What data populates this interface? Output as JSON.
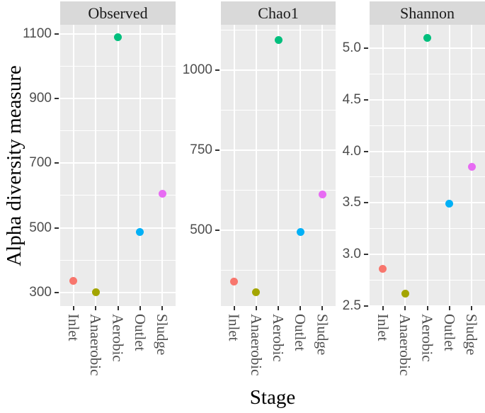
{
  "figure": {
    "y_axis_title": "Alpha diversity measure",
    "x_axis_title": "Stage"
  },
  "chart_data": {
    "type": "scatter",
    "subtype": "faceted-dotplot",
    "title": "",
    "xlabel": "Stage",
    "ylabel": "Alpha diversity measure",
    "legend": "none",
    "grid": "on",
    "categories": [
      "Inlet",
      "Anaerobic",
      "Aerobic",
      "Outlet",
      "Sludge"
    ],
    "series_colors": {
      "Inlet": "#F8766D",
      "Anaerobic": "#A3A500",
      "Aerobic": "#00BF7D",
      "Outlet": "#00B0F6",
      "Sludge": "#E76BF3"
    },
    "panel_bg": "#EBEBEB",
    "strip_bg": "#D9D9D9",
    "grid_color": "#FFFFFF",
    "tick_text_color": "#4D4D4D",
    "facets": [
      {
        "title": "Observed",
        "ylim": [
          258,
          1128
        ],
        "major_ticks": [
          300,
          500,
          700,
          900,
          1100
        ],
        "minor_ticks": [
          400,
          600,
          800,
          1000
        ],
        "tick_decimals": 0,
        "values": [
          335,
          300,
          1090,
          487,
          605
        ]
      },
      {
        "title": "Chao1",
        "ylim": [
          264,
          1141
        ],
        "major_ticks": [
          500,
          750,
          1000
        ],
        "minor_ticks": [
          375,
          625,
          875,
          1125
        ],
        "tick_decimals": 0,
        "values": [
          340,
          307,
          1094,
          495,
          611
        ]
      },
      {
        "title": "Shannon",
        "ylim": [
          2.5,
          5.226
        ],
        "major_ticks": [
          2.5,
          3.0,
          3.5,
          4.0,
          4.5,
          5.0
        ],
        "minor_ticks": [
          2.75,
          3.25,
          3.75,
          4.25,
          4.75
        ],
        "tick_decimals": 1,
        "values": [
          2.86,
          2.62,
          5.1,
          3.49,
          3.85
        ]
      }
    ]
  }
}
